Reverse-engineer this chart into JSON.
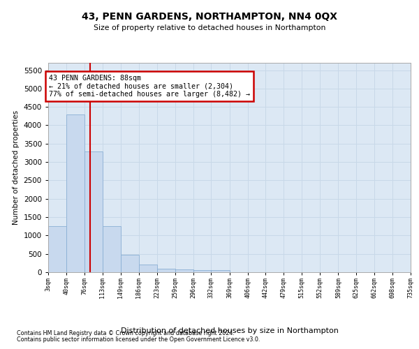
{
  "title": "43, PENN GARDENS, NORTHAMPTON, NN4 0QX",
  "subtitle": "Size of property relative to detached houses in Northampton",
  "xlabel": "Distribution of detached houses by size in Northampton",
  "ylabel": "Number of detached properties",
  "bar_color": "#c8d9ee",
  "bar_edge_color": "#8aafd4",
  "grid_color": "#c8d8e8",
  "background_color": "#dce8f4",
  "annotation_box_color": "#cc0000",
  "annotation_line_color": "#cc0000",
  "property_sqm": 88,
  "annotation_text_line1": "43 PENN GARDENS: 88sqm",
  "annotation_text_line2": "← 21% of detached houses are smaller (2,304)",
  "annotation_text_line3": "77% of semi-detached houses are larger (8,482) →",
  "footnote1": "Contains HM Land Registry data © Crown copyright and database right 2024.",
  "footnote2": "Contains public sector information licensed under the Open Government Licence v3.0.",
  "bin_edges": [
    3,
    40,
    76,
    113,
    149,
    186,
    223,
    259,
    296,
    332,
    369,
    406,
    442,
    479,
    515,
    552,
    589,
    625,
    662,
    698,
    735
  ],
  "bin_labels": [
    "3sqm",
    "40sqm",
    "76sqm",
    "113sqm",
    "149sqm",
    "186sqm",
    "223sqm",
    "259sqm",
    "296sqm",
    "332sqm",
    "369sqm",
    "406sqm",
    "442sqm",
    "479sqm",
    "515sqm",
    "552sqm",
    "589sqm",
    "625sqm",
    "662sqm",
    "698sqm",
    "735sqm"
  ],
  "bar_heights": [
    1250,
    4300,
    3280,
    1250,
    480,
    200,
    100,
    80,
    55,
    50,
    0,
    0,
    0,
    0,
    0,
    0,
    0,
    0,
    0,
    0
  ],
  "ylim": [
    0,
    5700
  ],
  "yticks": [
    0,
    500,
    1000,
    1500,
    2000,
    2500,
    3000,
    3500,
    4000,
    4500,
    5000,
    5500
  ]
}
